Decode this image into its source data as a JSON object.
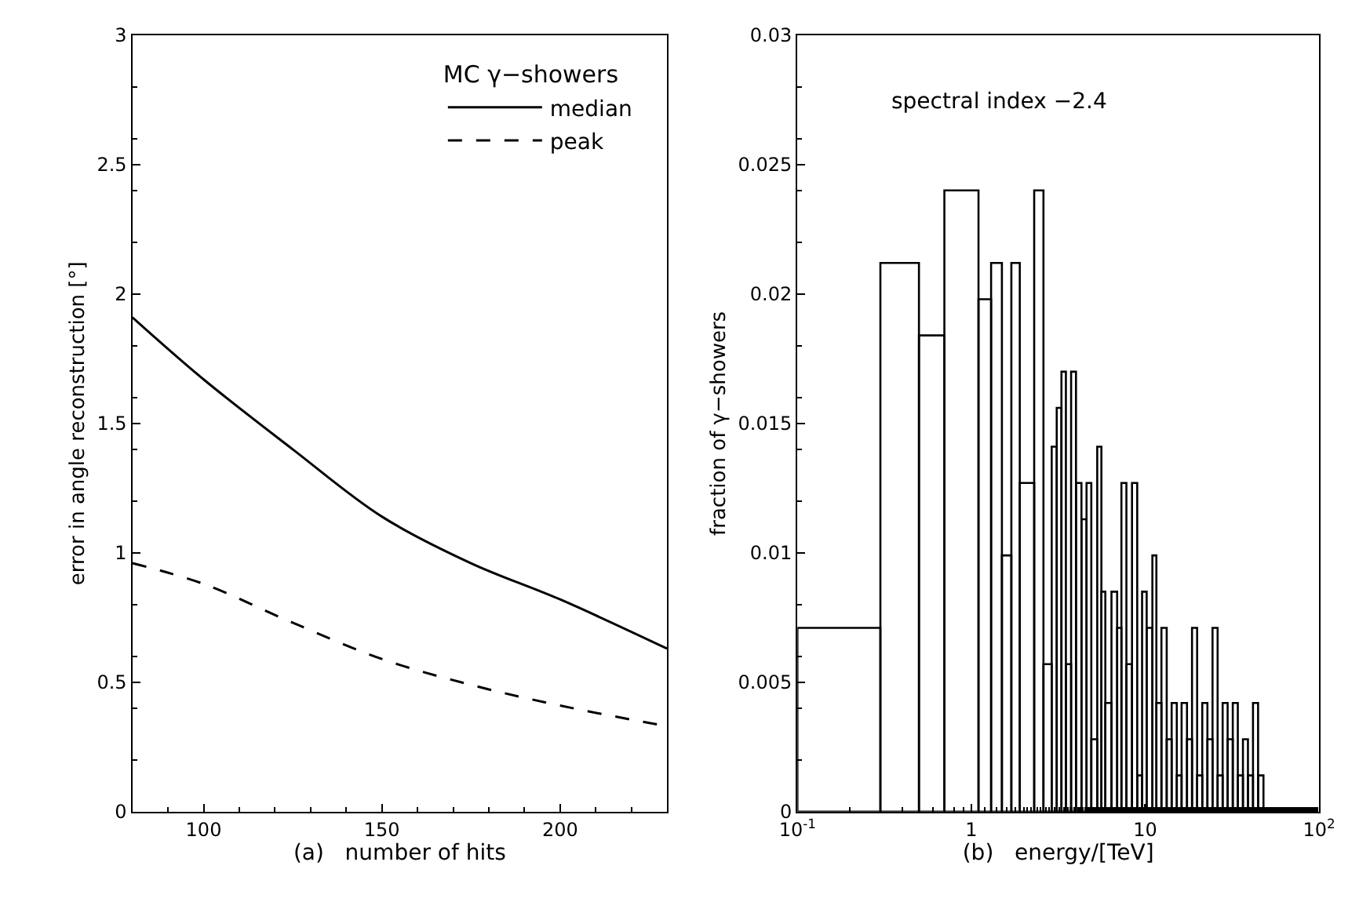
{
  "chart_data": [
    {
      "type": "line",
      "xlabel": "(a)   number of hits",
      "ylabel": "error in angle reconstruction [°]",
      "legend_title": "MC γ−showers",
      "legend": "top right",
      "x": [
        80,
        100,
        125,
        150,
        175,
        200,
        230
      ],
      "series": [
        {
          "name": "median",
          "color": "#000000",
          "line_style": "solid",
          "values": [
            1.91,
            1.67,
            1.4,
            1.14,
            0.96,
            0.82,
            0.63
          ]
        },
        {
          "name": "peak",
          "color": "#000000",
          "line_style": "dashed",
          "values": [
            0.96,
            0.88,
            0.73,
            0.59,
            0.49,
            0.41,
            0.33
          ]
        }
      ],
      "xlim": [
        80,
        230
      ],
      "xticks": [
        100,
        150,
        200
      ],
      "ylim": [
        0,
        3
      ],
      "yticks": [
        0,
        0.5,
        1,
        1.5,
        2,
        2.5,
        3
      ],
      "marker": "none"
    },
    {
      "type": "histogram",
      "xlabel": "(b)   energy/[TeV]",
      "ylabel": "fraction of γ−showers",
      "annotations": [
        "spectral index −2.4"
      ],
      "log": "x",
      "color": "#000000",
      "bins": [
        0.1,
        0.3,
        0.5,
        0.7,
        1.1,
        1.3,
        1.5,
        1.7,
        1.9,
        2.3,
        2.6,
        2.9,
        3.1,
        3.3,
        3.5,
        3.75,
        4.0,
        4.3,
        4.6,
        4.9,
        5.3,
        5.6,
        5.9,
        6.4,
        6.9,
        7.3,
        7.8,
        8.4,
        9.0,
        9.6,
        10.2,
        11.0,
        11.6,
        12.4,
        13.3,
        14.2,
        15.2,
        16.2,
        17.4,
        18.6,
        19.9,
        21.3,
        22.8,
        24.4,
        26.1,
        27.9,
        29.8,
        31.9,
        34.1,
        36.5,
        39.0,
        41.7,
        44.6,
        47.9
      ],
      "values": [
        0.0071,
        0.0212,
        0.0184,
        0.024,
        0.0198,
        0.0212,
        0.0099,
        0.0212,
        0.0127,
        0.024,
        0.0057,
        0.0141,
        0.0156,
        0.017,
        0.0057,
        0.017,
        0.0127,
        0.0113,
        0.0127,
        0.0028,
        0.0141,
        0.0085,
        0.0042,
        0.0085,
        0.0071,
        0.0127,
        0.0057,
        0.0127,
        0.0014,
        0.0085,
        0.0071,
        0.0099,
        0.0042,
        0.0071,
        0.0028,
        0.0042,
        0.0014,
        0.0042,
        0.0028,
        0.0071,
        0.0014,
        0.0042,
        0.0028,
        0.0071,
        0.0014,
        0.0042,
        0.0028,
        0.0042,
        0.0014,
        0.0028,
        0.0014,
        0.0042,
        0.0014
      ],
      "xlim": [
        0.1,
        100
      ],
      "xticks": [
        {
          "value": 0.1,
          "label": "10$^{-1}$"
        },
        1,
        10,
        {
          "value": 100,
          "label": "10$^{2}$"
        }
      ],
      "ylim": [
        0,
        0.03
      ],
      "yticks": [
        0,
        0.005,
        0.01,
        0.015,
        0.02,
        0.025,
        0.03
      ]
    }
  ]
}
